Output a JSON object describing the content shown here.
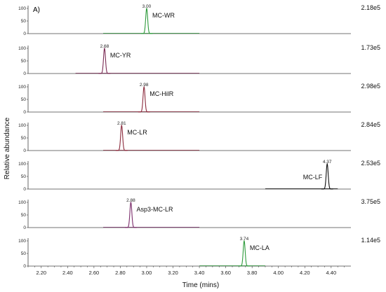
{
  "chart_data": {
    "type": "line",
    "panel_label": "A)",
    "xlabel": "Time (mins)",
    "ylabel": "Relative abundance",
    "xlim": [
      2.1,
      4.55
    ],
    "xticks": [
      "2.20",
      "2.40",
      "2.60",
      "2.80",
      "3.00",
      "3.20",
      "3.40",
      "3.60",
      "3.80",
      "4.00",
      "4.20",
      "4.40"
    ],
    "ylim": [
      0,
      100
    ],
    "yticks": [
      "100",
      "50",
      "0"
    ],
    "grid": false,
    "traces": [
      {
        "name": "MC-WR",
        "peak_rt": 3.0,
        "peak_label": "3.00",
        "scale": "2.18e5",
        "color": "#2e9b3c",
        "baseline_range": [
          2.67,
          3.4
        ]
      },
      {
        "name": "MC-YR",
        "peak_rt": 2.68,
        "peak_label": "2.68",
        "scale": "1.73e5",
        "color": "#7b2c55",
        "baseline_range": [
          2.46,
          3.4
        ]
      },
      {
        "name": "MC-HilR",
        "peak_rt": 2.98,
        "peak_label": "2.98",
        "scale": "2.98e5",
        "color": "#8b2a3c",
        "baseline_range": [
          2.67,
          3.4
        ]
      },
      {
        "name": "MC-LR",
        "peak_rt": 2.81,
        "peak_label": "2.81",
        "scale": "2.84e5",
        "color": "#8b2a3c",
        "baseline_range": [
          2.67,
          3.4
        ]
      },
      {
        "name": "MC-LF",
        "peak_rt": 4.37,
        "peak_label": "4.37",
        "scale": "2.53e5",
        "color": "#111111",
        "baseline_range": [
          3.9,
          4.45
        ]
      },
      {
        "name": "Asp3-MC-LR",
        "peak_rt": 2.88,
        "peak_label": "2.88",
        "scale": "3.75e5",
        "color": "#7b2c6b",
        "baseline_range": [
          2.67,
          3.4
        ]
      },
      {
        "name": "MC-LA",
        "peak_rt": 3.74,
        "peak_label": "3.74",
        "scale": "1.14e5",
        "color": "#2e9b3c",
        "baseline_range": [
          3.4,
          3.9
        ]
      }
    ]
  }
}
